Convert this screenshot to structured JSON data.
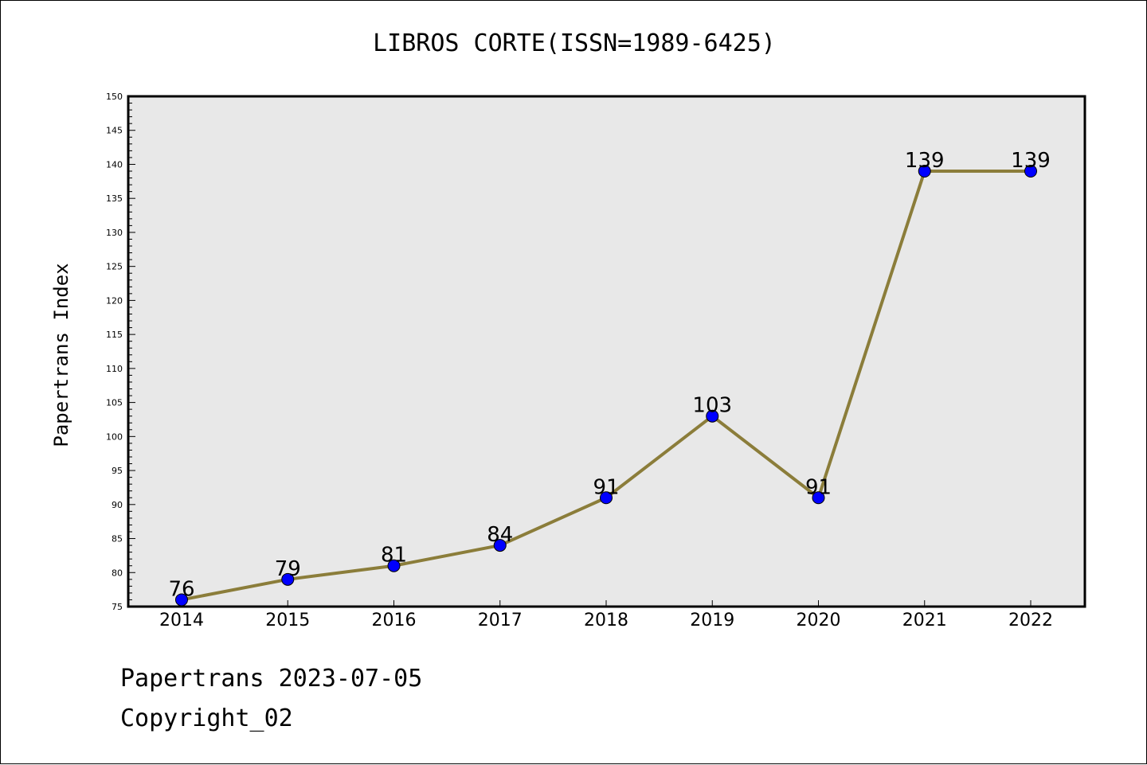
{
  "chart_data": {
    "type": "line",
    "title": "LIBROS CORTE(ISSN=1989-6425)",
    "xlabel": "",
    "ylabel": "Papertrans Index",
    "x": [
      "2014",
      "2015",
      "2016",
      "2017",
      "2018",
      "2019",
      "2020",
      "2021",
      "2022"
    ],
    "series": [
      {
        "values": [
          76,
          79,
          81,
          84,
          91,
          103,
          91,
          139,
          139
        ],
        "line_color": "#8b7d3a",
        "marker_color": "#0000ff"
      }
    ],
    "data_labels": [
      "76",
      "79",
      "81",
      "84",
      "91",
      "103",
      "91",
      "139",
      "139"
    ],
    "ylim": [
      75,
      150
    ],
    "y_ticks": [
      "75",
      "80",
      "85",
      "90",
      "95",
      "100",
      "105",
      "110",
      "115",
      "120",
      "125",
      "130",
      "135",
      "140",
      "145",
      "150"
    ],
    "plot_background": "#e8e8e8",
    "grid": false,
    "legend": "none"
  },
  "footer": {
    "line1": "Papertrans 2023-07-05",
    "line2": "Copyright_02"
  }
}
